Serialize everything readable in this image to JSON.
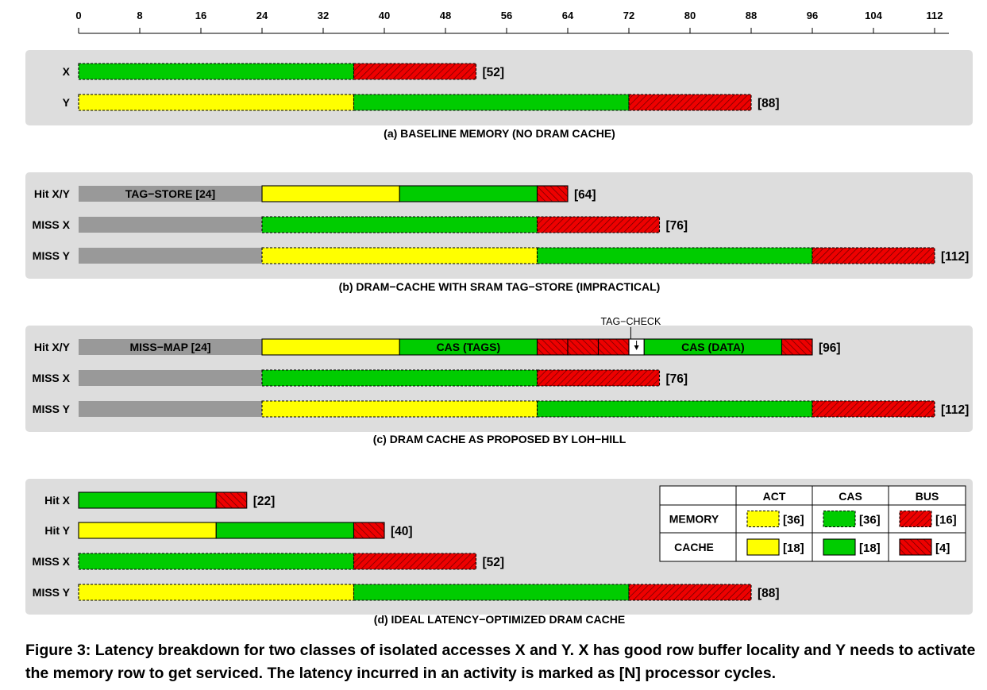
{
  "colors": {
    "act": "#ffff00",
    "cas": "#00cc00",
    "bus": "#ee0000",
    "tag": "#999999",
    "panel": "#dddddd"
  },
  "chart_data": {
    "type": "bar",
    "orientation": "horizontal",
    "stacked": true,
    "xlim": [
      0,
      112
    ],
    "xticks": [
      0,
      8,
      16,
      24,
      32,
      40,
      48,
      56,
      64,
      72,
      80,
      88,
      96,
      104,
      112
    ],
    "xlabel": "",
    "ylabel": "",
    "grid": false,
    "panels": [
      {
        "title": "(a) BASELINE MEMORY (NO DRAM CACHE)",
        "rows": [
          {
            "label": "X",
            "total": 52,
            "total_label": "[52]",
            "segments": [
              {
                "kind": "cas",
                "level": "memory",
                "start": 0,
                "end": 36
              },
              {
                "kind": "bus",
                "level": "memory",
                "start": 36,
                "end": 52
              }
            ]
          },
          {
            "label": "Y",
            "total": 88,
            "total_label": "[88]",
            "segments": [
              {
                "kind": "act",
                "level": "memory",
                "start": 0,
                "end": 36
              },
              {
                "kind": "cas",
                "level": "memory",
                "start": 36,
                "end": 72
              },
              {
                "kind": "bus",
                "level": "memory",
                "start": 72,
                "end": 88
              }
            ]
          }
        ]
      },
      {
        "title": "(b) DRAM−CACHE WITH SRAM TAG−STORE (IMPRACTICAL)",
        "rows": [
          {
            "label": "Hit X/Y",
            "total": 64,
            "total_label": "[64]",
            "segments": [
              {
                "kind": "tag",
                "level": "",
                "start": 0,
                "end": 24,
                "text": "TAG−STORE [24]"
              },
              {
                "kind": "act",
                "level": "cache",
                "start": 24,
                "end": 42
              },
              {
                "kind": "cas",
                "level": "cache",
                "start": 42,
                "end": 60
              },
              {
                "kind": "bus",
                "level": "cache",
                "start": 60,
                "end": 64
              }
            ]
          },
          {
            "label": "MISS X",
            "total": 76,
            "total_label": "[76]",
            "segments": [
              {
                "kind": "tag",
                "level": "",
                "start": 0,
                "end": 24
              },
              {
                "kind": "cas",
                "level": "memory",
                "start": 24,
                "end": 60
              },
              {
                "kind": "bus",
                "level": "memory",
                "start": 60,
                "end": 76
              }
            ]
          },
          {
            "label": "MISS Y",
            "total": 112,
            "total_label": "[112]",
            "segments": [
              {
                "kind": "tag",
                "level": "",
                "start": 0,
                "end": 24
              },
              {
                "kind": "act",
                "level": "memory",
                "start": 24,
                "end": 60
              },
              {
                "kind": "cas",
                "level": "memory",
                "start": 60,
                "end": 96
              },
              {
                "kind": "bus",
                "level": "memory",
                "start": 96,
                "end": 112
              }
            ]
          }
        ]
      },
      {
        "title": "(c) DRAM CACHE AS PROPOSED BY LOH−HILL",
        "annotation": "TAG−CHECK",
        "annotation_x": 71,
        "rows": [
          {
            "label": "Hit X/Y",
            "total": 96,
            "total_label": "[96]",
            "segments": [
              {
                "kind": "tag",
                "level": "",
                "start": 0,
                "end": 24,
                "text": "MISS−MAP [24]"
              },
              {
                "kind": "act",
                "level": "cache",
                "start": 24,
                "end": 42
              },
              {
                "kind": "cas",
                "level": "cache",
                "start": 42,
                "end": 60,
                "text": "CAS (TAGS)"
              },
              {
                "kind": "bus",
                "level": "cache",
                "start": 60,
                "end": 64
              },
              {
                "kind": "bus",
                "level": "cache",
                "start": 64,
                "end": 68
              },
              {
                "kind": "bus",
                "level": "cache",
                "start": 68,
                "end": 72
              },
              {
                "kind": "check",
                "level": "",
                "start": 72,
                "end": 74
              },
              {
                "kind": "cas",
                "level": "cache",
                "start": 74,
                "end": 92,
                "text": "CAS (DATA)"
              },
              {
                "kind": "bus",
                "level": "cache",
                "start": 92,
                "end": 96
              }
            ]
          },
          {
            "label": "MISS X",
            "total": 76,
            "total_label": "[76]",
            "segments": [
              {
                "kind": "tag",
                "level": "",
                "start": 0,
                "end": 24
              },
              {
                "kind": "cas",
                "level": "memory",
                "start": 24,
                "end": 60
              },
              {
                "kind": "bus",
                "level": "memory",
                "start": 60,
                "end": 76
              }
            ]
          },
          {
            "label": "MISS Y",
            "total": 112,
            "total_label": "[112]",
            "segments": [
              {
                "kind": "tag",
                "level": "",
                "start": 0,
                "end": 24
              },
              {
                "kind": "act",
                "level": "memory",
                "start": 24,
                "end": 60
              },
              {
                "kind": "cas",
                "level": "memory",
                "start": 60,
                "end": 96
              },
              {
                "kind": "bus",
                "level": "memory",
                "start": 96,
                "end": 112
              }
            ]
          }
        ]
      },
      {
        "title": "(d) IDEAL LATENCY−OPTIMIZED DRAM CACHE",
        "rows": [
          {
            "label": "Hit X",
            "total": 22,
            "total_label": "[22]",
            "segments": [
              {
                "kind": "cas",
                "level": "cache",
                "start": 0,
                "end": 18
              },
              {
                "kind": "bus",
                "level": "cache",
                "start": 18,
                "end": 22
              }
            ]
          },
          {
            "label": "Hit Y",
            "total": 40,
            "total_label": "[40]",
            "segments": [
              {
                "kind": "act",
                "level": "cache",
                "start": 0,
                "end": 18
              },
              {
                "kind": "cas",
                "level": "cache",
                "start": 18,
                "end": 36
              },
              {
                "kind": "bus",
                "level": "cache",
                "start": 36,
                "end": 40
              }
            ]
          },
          {
            "label": "MISS X",
            "total": 52,
            "total_label": "[52]",
            "segments": [
              {
                "kind": "cas",
                "level": "memory",
                "start": 0,
                "end": 36
              },
              {
                "kind": "bus",
                "level": "memory",
                "start": 36,
                "end": 52
              }
            ]
          },
          {
            "label": "MISS Y",
            "total": 88,
            "total_label": "[88]",
            "segments": [
              {
                "kind": "act",
                "level": "memory",
                "start": 0,
                "end": 36
              },
              {
                "kind": "cas",
                "level": "memory",
                "start": 36,
                "end": 72
              },
              {
                "kind": "bus",
                "level": "memory",
                "start": 72,
                "end": 88
              }
            ]
          }
        ]
      }
    ],
    "legend": {
      "placement": "bottom-right of panel (d)",
      "columns": [
        "ACT",
        "CAS",
        "BUS"
      ],
      "rows": [
        {
          "label": "MEMORY",
          "level": "memory",
          "values": [
            "[36]",
            "[36]",
            "[16]"
          ]
        },
        {
          "label": "CACHE",
          "level": "cache",
          "values": [
            "[18]",
            "[18]",
            "[4]"
          ]
        }
      ]
    }
  },
  "caption": "Figure 3: Latency breakdown for two classes of isolated accesses X and Y. X has good row buffer locality and Y needs to activate the memory row to get serviced. The latency incurred in an activity is marked as [N] processor cycles."
}
